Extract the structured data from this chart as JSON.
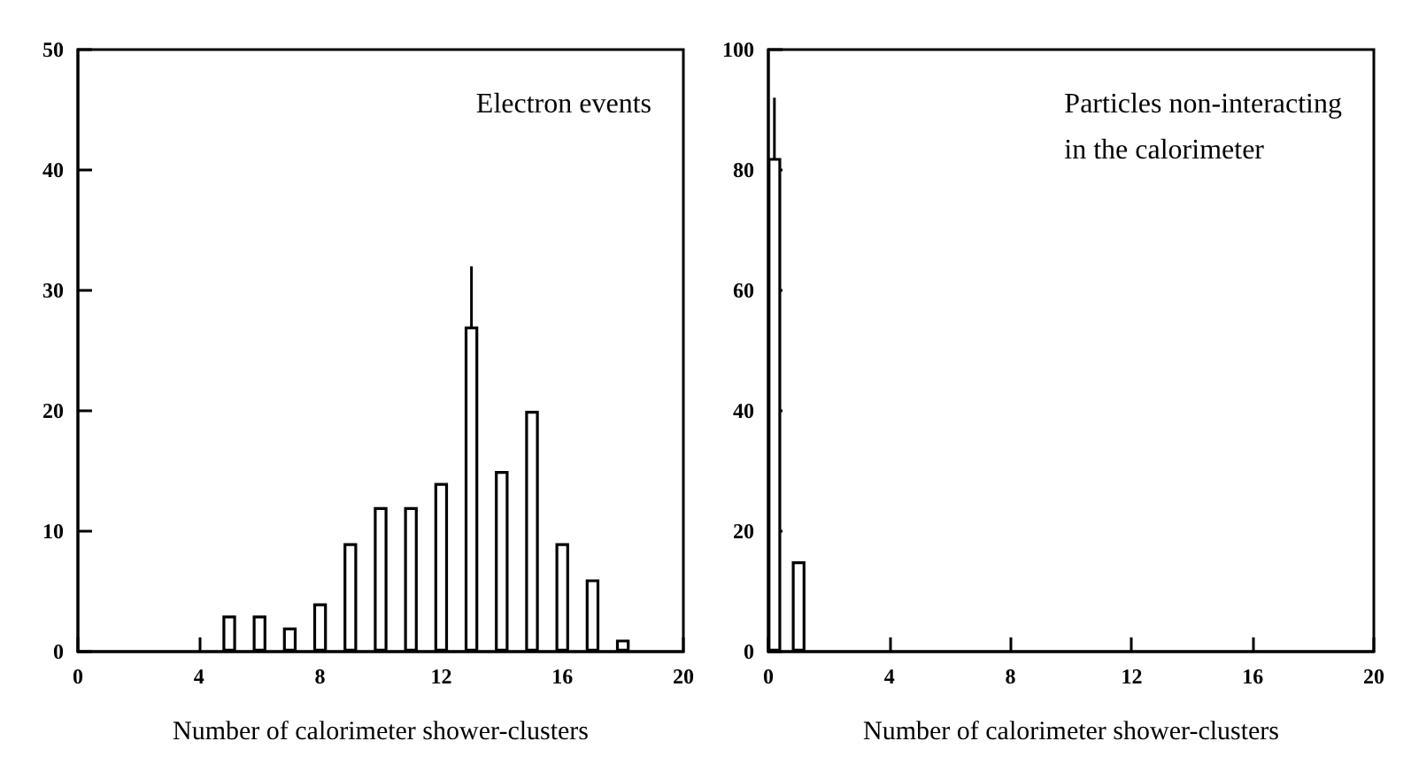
{
  "chart_data": [
    {
      "type": "bar",
      "x": [
        5,
        6,
        7,
        8,
        9,
        10,
        11,
        12,
        13,
        14,
        15,
        16,
        17,
        18
      ],
      "values": [
        3,
        3,
        2,
        4,
        9,
        12,
        12,
        14,
        27,
        15,
        20,
        9,
        6,
        1
      ],
      "errors": [
        null,
        null,
        null,
        null,
        null,
        null,
        null,
        null,
        [
          22,
          32
        ],
        null,
        null,
        null,
        null,
        null
      ],
      "color": "#000000",
      "xlim": [
        0,
        20
      ],
      "xticks": [
        0,
        4,
        8,
        12,
        16,
        20
      ],
      "ylim": [
        0,
        50
      ],
      "yticks": [
        0,
        10,
        20,
        30,
        40,
        50
      ],
      "xlabel": "Number of calorimeter shower-clusters",
      "annotations": [
        "Electron events"
      ],
      "grid": false
    },
    {
      "type": "bar",
      "x": [
        0.2,
        1
      ],
      "values": [
        82,
        15
      ],
      "errors": [
        [
          74,
          92
        ],
        null
      ],
      "color": "#000000",
      "xlim": [
        0,
        20
      ],
      "xticks": [
        0,
        4,
        8,
        12,
        16,
        20
      ],
      "ylim": [
        0,
        100
      ],
      "yticks": [
        0,
        20,
        40,
        60,
        80,
        100
      ],
      "xlabel": "Number of calorimeter shower-clusters",
      "annotations": [
        "Particles non-interacting\nin the calorimeter"
      ],
      "grid": false
    }
  ]
}
